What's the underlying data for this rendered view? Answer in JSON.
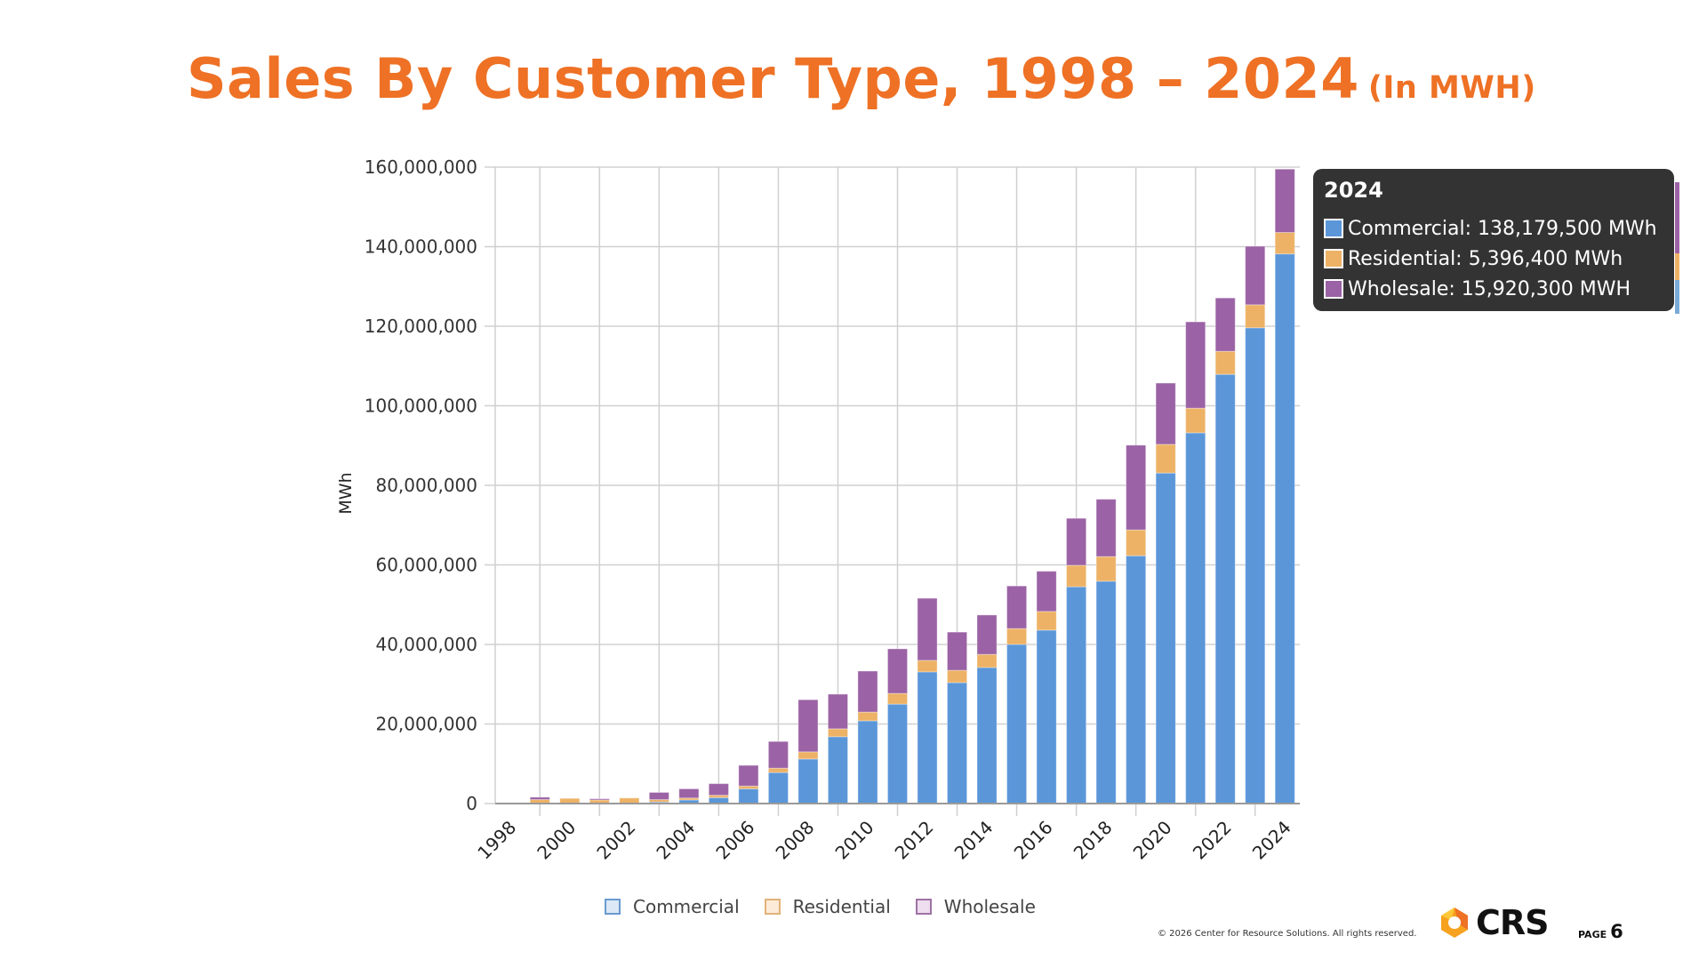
{
  "slide": {
    "title": "Sales By Customer Type, 1998 – 2024",
    "title_unit": "(In MWH)",
    "footer": "© 2026 Center for Resource Solutions.  All rights reserved.",
    "logo_text": "CRS",
    "page_label": "PAGE",
    "page_number": "6",
    "brand_color": "#EE7125"
  },
  "tooltip": {
    "year": "2024",
    "rows": [
      {
        "label": "Commercial: 138,179,500 MWh",
        "color": "#5B96D9"
      },
      {
        "label": "Residential: 5,396,400 MWh",
        "color": "#EDB266"
      },
      {
        "label": "Wholesale: 15,920,300 MWH",
        "color": "#9B62A5"
      }
    ]
  },
  "chart_data": {
    "type": "bar",
    "stacked": true,
    "title": "Sales By Customer Type, 1998 – 2024 (In MWH)",
    "xlabel": "",
    "ylabel": "MWh",
    "ylim": [
      0,
      160000000
    ],
    "yticks": [
      0,
      20000000,
      40000000,
      60000000,
      80000000,
      100000000,
      120000000,
      140000000,
      160000000
    ],
    "ytick_labels": [
      "0",
      "20,000,000",
      "40,000,000",
      "60,000,000",
      "80,000,000",
      "100,000,000",
      "120,000,000",
      "140,000,000",
      "160,000,000"
    ],
    "xtick_labels": [
      "1998",
      "2000",
      "2002",
      "2004",
      "2006",
      "2008",
      "2010",
      "2012",
      "2014",
      "2016",
      "2018",
      "2020",
      "2022",
      "2024"
    ],
    "grid": true,
    "legend_position": "bottom",
    "categories": [
      "1998",
      "1999",
      "2000",
      "2001",
      "2002",
      "2003",
      "2004",
      "2005",
      "2006",
      "2007",
      "2008",
      "2009",
      "2010",
      "2011",
      "2012",
      "2013",
      "2014",
      "2015",
      "2016",
      "2017",
      "2018",
      "2019",
      "2020",
      "2021",
      "2022",
      "2023",
      "2024"
    ],
    "series": [
      {
        "name": "Commercial",
        "color": "#5B96D9",
        "legend_fill": "#DCE8F5",
        "legend_border": "#6A9BD0",
        "values": [
          0,
          0,
          0,
          0,
          0,
          400000,
          900000,
          1500000,
          3700000,
          7800000,
          11200000,
          16800000,
          20800000,
          25000000,
          33100000,
          30400000,
          34200000,
          40000000,
          43600000,
          54500000,
          55900000,
          62300000,
          83100000,
          93200000,
          107900000,
          119600000,
          138179500
        ]
      },
      {
        "name": "Residential",
        "color": "#EDB266",
        "legend_fill": "#FCEBD9",
        "legend_border": "#E2B277",
        "values": [
          0,
          1000000,
          1300000,
          900000,
          1400000,
          600000,
          500000,
          600000,
          700000,
          1100000,
          1800000,
          2000000,
          2200000,
          2700000,
          2900000,
          3100000,
          3300000,
          4000000,
          4700000,
          5400000,
          6200000,
          6500000,
          7200000,
          6200000,
          5800000,
          5800000,
          5396400
        ]
      },
      {
        "name": "Wholesale",
        "color": "#9B62A5",
        "legend_fill": "#EEDCEF",
        "legend_border": "#9E73A4",
        "values": [
          0,
          600000,
          0,
          300000,
          0,
          1800000,
          2300000,
          2900000,
          5200000,
          6700000,
          13100000,
          8700000,
          10300000,
          11200000,
          15600000,
          9600000,
          9900000,
          10700000,
          10100000,
          11800000,
          14400000,
          21300000,
          15400000,
          21700000,
          13400000,
          14700000,
          15920300
        ]
      }
    ]
  }
}
